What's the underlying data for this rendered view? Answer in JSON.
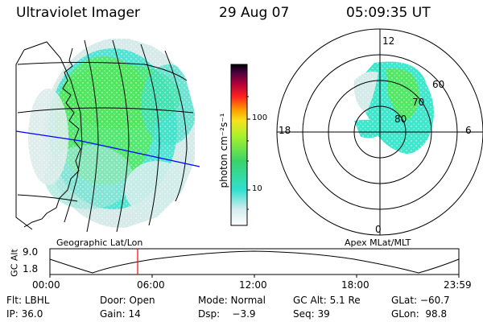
{
  "header": {
    "title": "Ultraviolet Imager",
    "date": "29 Aug 07",
    "time": "05:09:35 UT"
  },
  "colorbar": {
    "unit_label": "photon cm⁻²s⁻¹",
    "ticks": [
      "100",
      "10"
    ]
  },
  "polar_plot": {
    "mlt_labels": {
      "top": "12",
      "left": "18",
      "right": "6",
      "bottom": "0"
    },
    "lat_labels": [
      "60",
      "70",
      "80"
    ]
  },
  "panel_labels": {
    "left": "Geographic Lat/Lon",
    "right": "Apex MLat/MLT"
  },
  "altitude_plot": {
    "axis_label": "GC Alt",
    "y_ticks": [
      "9.0",
      "1.8"
    ],
    "x_ticks": [
      "00:00",
      "06:00",
      "12:00",
      "18:00",
      "23:59"
    ],
    "marker_color": "#ff0000"
  },
  "info": {
    "flt": "Flt: LBHL",
    "door": "Door: Open",
    "mode": "Mode: Normal",
    "gc_alt": "GC Alt: 5.1 Re",
    "glat": "GLat: −60.7",
    "ip": "IP: 36.0",
    "gain": "Gain: 14",
    "dsp": "Dsp:    −3.9",
    "seq": "Seq: 39",
    "glon": "GLon:  98.8"
  },
  "colors": {
    "low": "#dcebea",
    "cyan": "#39e6d3",
    "green": "#4fe85a",
    "lime": "#9ef23a",
    "grid_blue": "#0000ff"
  }
}
